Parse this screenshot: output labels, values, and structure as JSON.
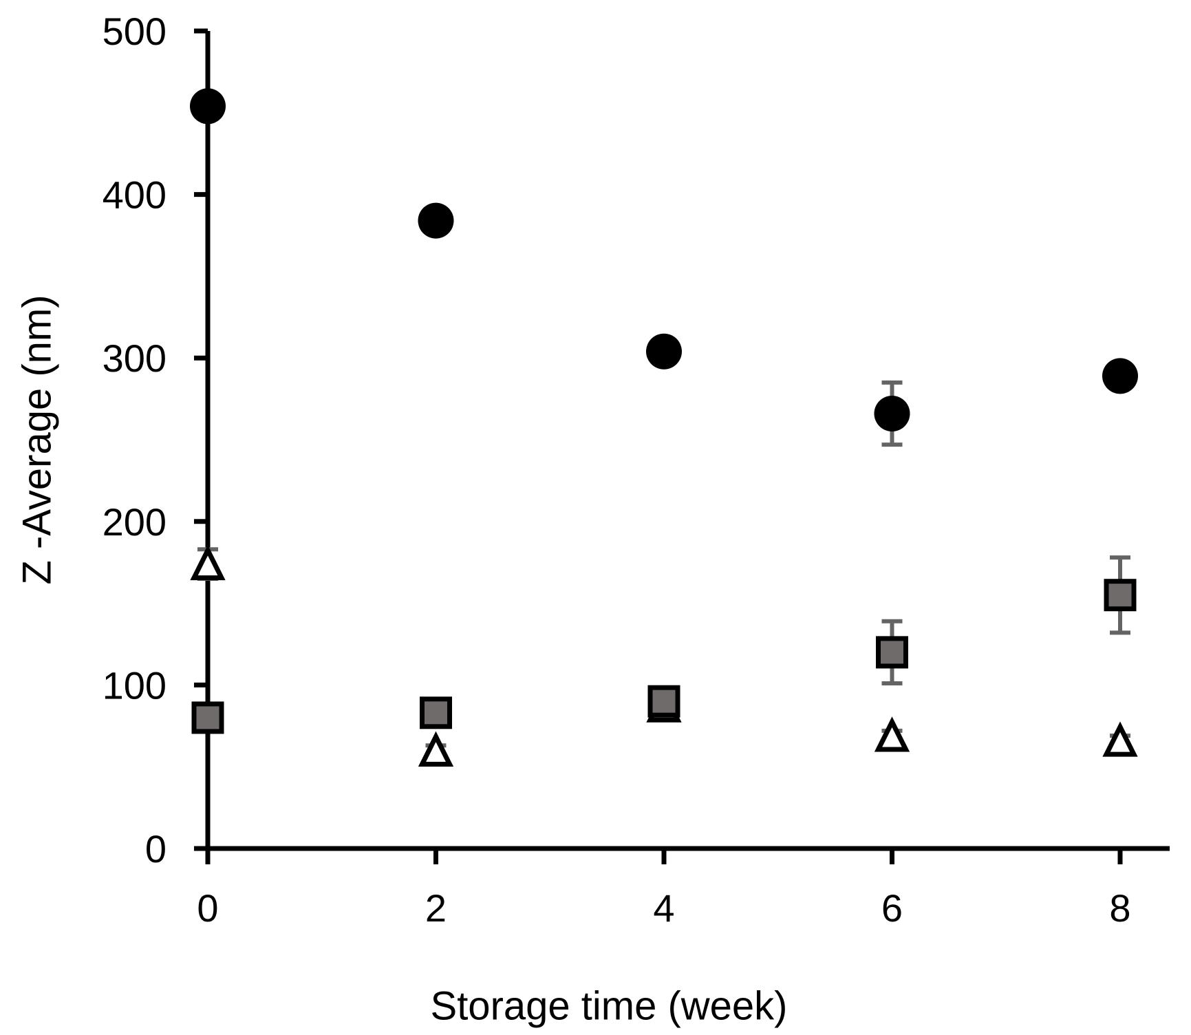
{
  "chart_data": {
    "type": "scatter",
    "title": "",
    "xlabel": "Storage time (week)",
    "ylabel": "Z -Average (nm)",
    "xlim": [
      0,
      8.4
    ],
    "ylim": [
      0,
      500
    ],
    "x_ticks": [
      0,
      2,
      4,
      6,
      8
    ],
    "y_ticks": [
      0,
      100,
      200,
      300,
      400,
      500
    ],
    "grid": false,
    "legend_position": "none",
    "axis_color": "#000000",
    "error_bar_color": "#646464",
    "background_color": "#ffffff",
    "series": [
      {
        "name": "open-triangle-series",
        "marker": "triangle-up",
        "fill": "#ffffff",
        "stroke": "#000000",
        "x": [
          0,
          2,
          4,
          6,
          8
        ],
        "y": [
          174,
          60,
          87,
          69,
          66
        ],
        "yerr": [
          9,
          3,
          0,
          3,
          3
        ]
      },
      {
        "name": "gray-square-series",
        "marker": "square",
        "fill": "#6f6b6b",
        "stroke": "#000000",
        "x": [
          0,
          2,
          4,
          6,
          8
        ],
        "y": [
          80,
          83,
          90,
          120,
          155
        ],
        "yerr": [
          0,
          0,
          0,
          19,
          23
        ]
      },
      {
        "name": "black-circle-series",
        "marker": "circle",
        "fill": "#000000",
        "stroke": "none",
        "x": [
          0,
          2,
          4,
          6,
          8
        ],
        "y": [
          454,
          384,
          304,
          266,
          289
        ],
        "yerr": [
          0,
          0,
          0,
          19,
          0
        ]
      }
    ]
  }
}
